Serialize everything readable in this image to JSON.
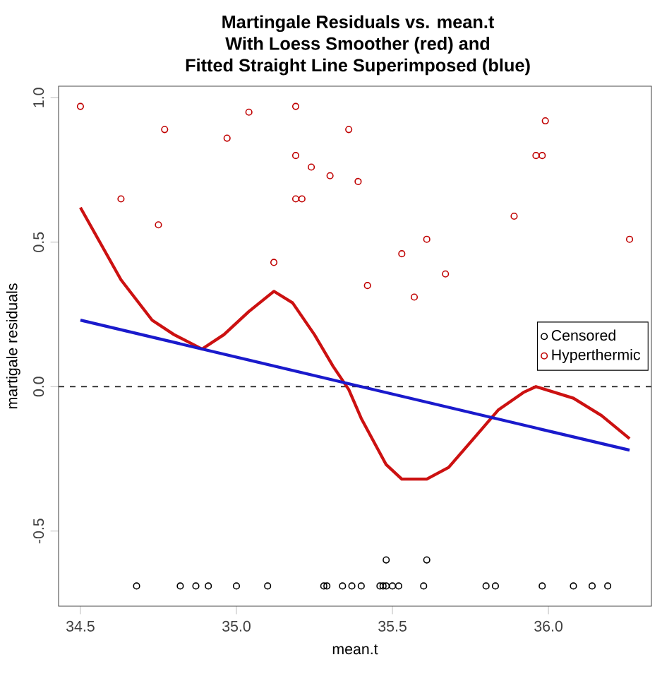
{
  "chart_data": {
    "type": "scatter",
    "title": "Martingale Residuals vs. mean.t",
    "subtitle": [
      "With Loess Smoother (red) and",
      "Fitted Straight Line Superimposed (blue)"
    ],
    "xlabel": "mean.t",
    "ylabel": "martigale residuals",
    "xlim": [
      34.43,
      36.33
    ],
    "ylim": [
      -0.76,
      1.04
    ],
    "xticks": [
      {
        "value": 34.5,
        "label": "34.5"
      },
      {
        "value": 35.0,
        "label": "35.0"
      },
      {
        "value": 35.5,
        "label": "35.5"
      },
      {
        "value": 36.0,
        "label": "36.0"
      }
    ],
    "yticks": [
      {
        "value": -0.5,
        "label": "-0.5"
      },
      {
        "value": 0.0,
        "label": "0.0"
      },
      {
        "value": 0.5,
        "label": "0.5"
      },
      {
        "value": 1.0,
        "label": "1.0"
      }
    ],
    "grid": false,
    "legend": "right",
    "ref_lines": [
      {
        "axis": "y",
        "value": 0,
        "line_style": "dashed",
        "color": "#333333"
      }
    ],
    "series": [
      {
        "name": "Censored",
        "marker": "circle",
        "color": "#000000",
        "x": [
          34.68,
          34.82,
          34.87,
          34.91,
          35.0,
          35.1,
          35.28,
          35.29,
          35.34,
          35.37,
          35.4,
          35.46,
          35.47,
          35.48,
          35.5,
          35.52,
          35.6,
          35.8,
          35.83,
          35.98,
          36.08,
          36.14,
          36.19,
          35.48,
          35.61
        ],
        "values": [
          -0.69,
          -0.69,
          -0.69,
          -0.69,
          -0.69,
          -0.69,
          -0.69,
          -0.69,
          -0.69,
          -0.69,
          -0.69,
          -0.69,
          -0.69,
          -0.69,
          -0.69,
          -0.69,
          -0.69,
          -0.69,
          -0.69,
          -0.69,
          -0.69,
          -0.69,
          -0.69,
          -0.6,
          -0.6
        ]
      },
      {
        "name": "Hyperthermic",
        "marker": "circle",
        "color": "#c00000",
        "x": [
          34.5,
          34.63,
          34.77,
          34.75,
          34.97,
          35.04,
          35.12,
          35.19,
          35.19,
          35.19,
          35.21,
          35.24,
          35.3,
          35.36,
          35.39,
          35.61,
          35.53,
          35.67,
          35.42,
          35.57,
          35.99,
          35.96,
          35.98,
          35.89,
          36.26
        ],
        "values": [
          0.97,
          0.65,
          0.89,
          0.56,
          0.86,
          0.95,
          0.43,
          0.97,
          0.8,
          0.65,
          0.65,
          0.76,
          0.73,
          0.89,
          0.71,
          0.51,
          0.46,
          0.39,
          0.35,
          0.31,
          0.92,
          0.8,
          0.8,
          0.59,
          0.51
        ]
      },
      {
        "type": "line",
        "marker": "none",
        "color": "#cc1111",
        "x": [
          34.5,
          34.63,
          34.73,
          34.8,
          34.89,
          34.96,
          35.04,
          35.12,
          35.18,
          35.25,
          35.31,
          35.36,
          35.4,
          35.48,
          35.53,
          35.61,
          35.68,
          35.76,
          35.84,
          35.92,
          35.96,
          36.08,
          36.17,
          36.26
        ],
        "values": [
          0.62,
          0.37,
          0.23,
          0.18,
          0.13,
          0.18,
          0.26,
          0.33,
          0.29,
          0.18,
          0.07,
          -0.01,
          -0.11,
          -0.27,
          -0.32,
          -0.32,
          -0.28,
          -0.18,
          -0.08,
          -0.02,
          0.0,
          -0.04,
          -0.1,
          -0.18
        ]
      },
      {
        "type": "line",
        "marker": "none",
        "color": "#1a1acc",
        "x": [
          34.5,
          36.26
        ],
        "values": [
          0.23,
          -0.22
        ]
      }
    ]
  }
}
